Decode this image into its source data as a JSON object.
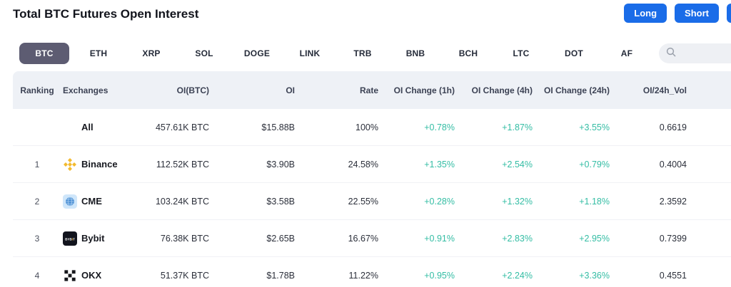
{
  "header": {
    "title": "Total BTC Futures Open Interest",
    "long_button": "Long",
    "short_button": "Short"
  },
  "tabs": {
    "active": "BTC",
    "items": [
      "BTC",
      "ETH",
      "XRP",
      "SOL",
      "DOGE",
      "LINK",
      "TRB",
      "BNB",
      "BCH",
      "LTC",
      "DOT",
      "AF"
    ]
  },
  "search": {
    "icon": "magnifier"
  },
  "table": {
    "columns": [
      "Ranking",
      "Exchanges",
      "OI(BTC)",
      "OI",
      "Rate",
      "OI Change (1h)",
      "OI Change (4h)",
      "OI Change (24h)",
      "OI/24h_Vol"
    ],
    "rows": [
      {
        "ranking": "",
        "logo": "none",
        "exchange": "All",
        "oi_btc": "457.61K BTC",
        "oi": "$15.88B",
        "rate": "100%",
        "oi_change_1h": "+0.78%",
        "oi_change_4h": "+1.87%",
        "oi_change_24h": "+3.55%",
        "oi_24h_vol": "0.6619"
      },
      {
        "ranking": "1",
        "logo": "binance",
        "exchange": "Binance",
        "oi_btc": "112.52K BTC",
        "oi": "$3.90B",
        "rate": "24.58%",
        "oi_change_1h": "+1.35%",
        "oi_change_4h": "+2.54%",
        "oi_change_24h": "+0.79%",
        "oi_24h_vol": "0.4004"
      },
      {
        "ranking": "2",
        "logo": "cme",
        "exchange": "CME",
        "oi_btc": "103.24K BTC",
        "oi": "$3.58B",
        "rate": "22.55%",
        "oi_change_1h": "+0.28%",
        "oi_change_4h": "+1.32%",
        "oi_change_24h": "+1.18%",
        "oi_24h_vol": "2.3592"
      },
      {
        "ranking": "3",
        "logo": "bybit",
        "exchange": "Bybit",
        "oi_btc": "76.38K BTC",
        "oi": "$2.65B",
        "rate": "16.67%",
        "oi_change_1h": "+0.91%",
        "oi_change_4h": "+2.83%",
        "oi_change_24h": "+2.95%",
        "oi_24h_vol": "0.7399"
      },
      {
        "ranking": "4",
        "logo": "okx",
        "exchange": "OKX",
        "oi_btc": "51.37K BTC",
        "oi": "$1.78B",
        "rate": "11.22%",
        "oi_change_1h": "+0.95%",
        "oi_change_4h": "+2.24%",
        "oi_change_24h": "+3.36%",
        "oi_24h_vol": "0.4551"
      }
    ]
  },
  "colors": {
    "positive": "#34bda4",
    "accent_blue": "#1a6ce8",
    "tab_active_bg": "#5d5c72",
    "table_header_bg": "#eef1f6"
  }
}
